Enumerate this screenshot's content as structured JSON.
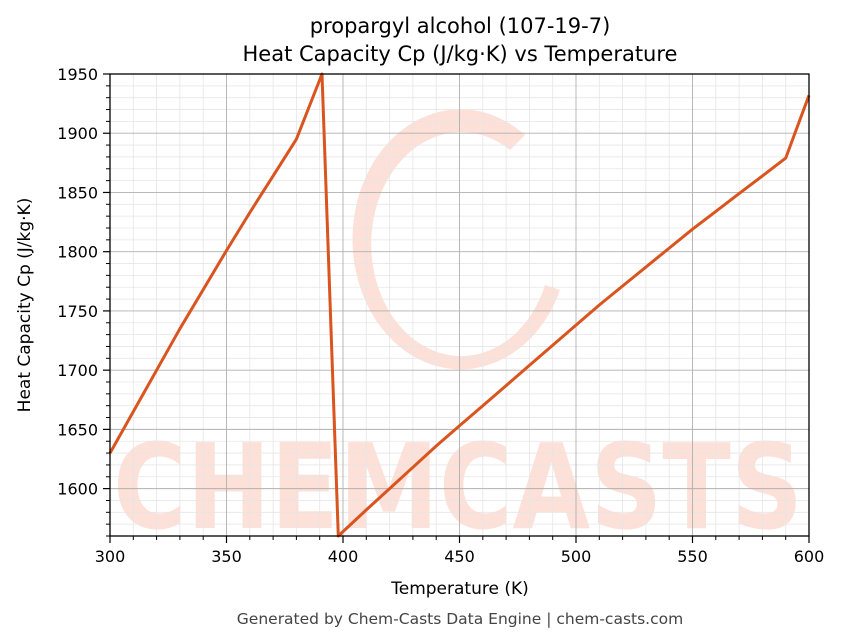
{
  "footer": "Generated by Chem-Casts Data Engine | chem-casts.com",
  "watermark": {
    "text": "CHEMCASTS",
    "color": "#fde0d8"
  },
  "chart_data": {
    "type": "line",
    "title": "propargyl alcohol (107-19-7)",
    "subtitle": "Heat Capacity Cp (J/kg·K) vs Temperature",
    "xlabel": "Temperature (K)",
    "ylabel": "Heat Capacity Cp (J/kg·K)",
    "xlim": [
      300,
      600
    ],
    "ylim": [
      1560,
      1950
    ],
    "xticks": [
      300,
      350,
      400,
      450,
      500,
      550,
      600
    ],
    "yticks": [
      1600,
      1650,
      1700,
      1750,
      1800,
      1850,
      1900,
      1950
    ],
    "grid": true,
    "line_color": "#d9541e",
    "series": [
      {
        "x": [
          300,
          310,
          320,
          330,
          340,
          350,
          360,
          370,
          380,
          391,
          398,
          410,
          420,
          430,
          440,
          450,
          460,
          470,
          480,
          490,
          500,
          510,
          520,
          530,
          540,
          550,
          560,
          570,
          580,
          590,
          600
        ],
        "y": [
          1630,
          1665,
          1700,
          1735,
          1768,
          1801,
          1833,
          1864,
          1895,
          1950,
          1560,
          1582,
          1600,
          1618,
          1636,
          1653,
          1670,
          1687,
          1704,
          1721,
          1738,
          1755,
          1771,
          1787,
          1803,
          1819,
          1834,
          1849,
          1864,
          1879,
          1932
        ]
      }
    ]
  }
}
